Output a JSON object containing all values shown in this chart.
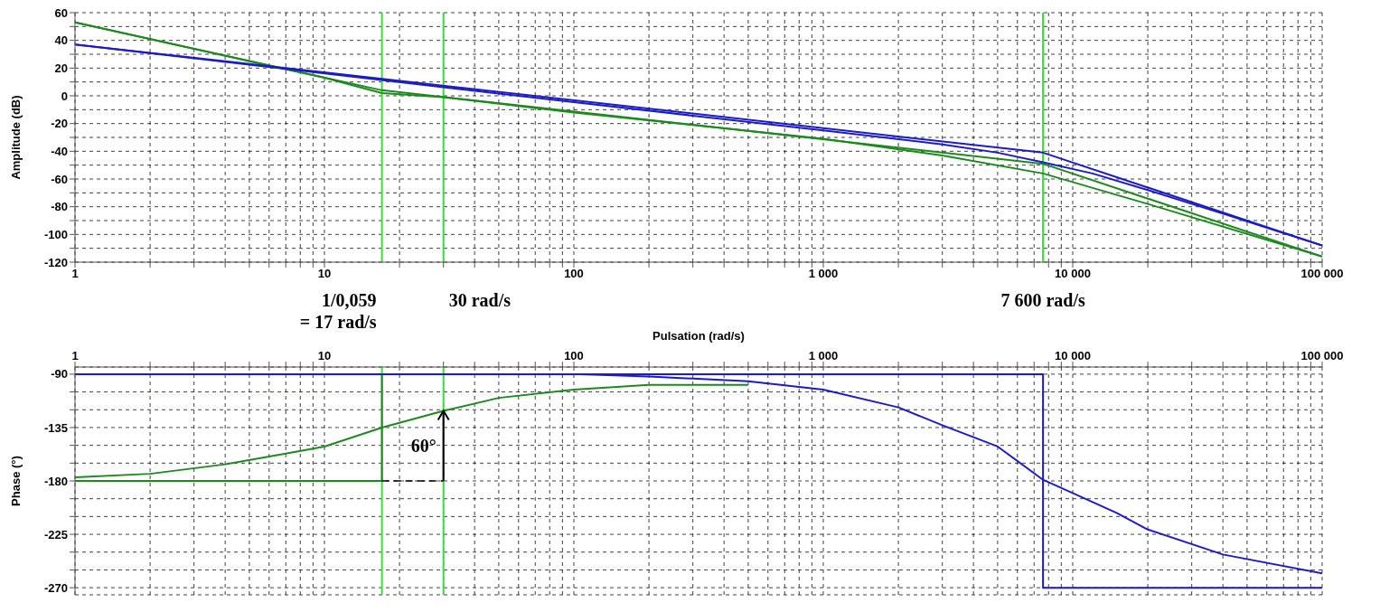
{
  "chart_data": [
    {
      "type": "line",
      "ylabel": "Amplitude (dB)",
      "log": "x",
      "grid": true,
      "xlim": [
        1,
        100000
      ],
      "ylim": [
        -120,
        60
      ],
      "xticks": [
        1,
        {
          "value": 2,
          "label": null
        },
        {
          "value": 3,
          "label": null
        },
        {
          "value": 4,
          "label": null
        },
        {
          "value": 5,
          "label": null
        },
        {
          "value": 6,
          "label": null
        },
        {
          "value": 7,
          "label": null
        },
        {
          "value": 8,
          "label": null
        },
        {
          "value": 9,
          "label": null
        },
        10,
        {
          "value": 20,
          "label": null
        },
        {
          "value": 30,
          "label": null
        },
        {
          "value": 40,
          "label": null
        },
        {
          "value": 50,
          "label": null
        },
        {
          "value": 60,
          "label": null
        },
        {
          "value": 70,
          "label": null
        },
        {
          "value": 80,
          "label": null
        },
        {
          "value": 90,
          "label": null
        },
        100,
        {
          "value": 200,
          "label": null
        },
        {
          "value": 300,
          "label": null
        },
        {
          "value": 400,
          "label": null
        },
        {
          "value": 500,
          "label": null
        },
        {
          "value": 600,
          "label": null
        },
        {
          "value": 700,
          "label": null
        },
        {
          "value": 800,
          "label": null
        },
        {
          "value": 900,
          "label": null
        },
        {
          "value": 1000,
          "label": "1 000"
        },
        {
          "value": 2000,
          "label": null
        },
        {
          "value": 3000,
          "label": null
        },
        {
          "value": 4000,
          "label": null
        },
        {
          "value": 5000,
          "label": null
        },
        {
          "value": 6000,
          "label": null
        },
        {
          "value": 7000,
          "label": null
        },
        {
          "value": 8000,
          "label": null
        },
        {
          "value": 9000,
          "label": null
        },
        {
          "value": 10000,
          "label": "10 000"
        },
        {
          "value": 20000,
          "label": null
        },
        {
          "value": 30000,
          "label": null
        },
        {
          "value": 40000,
          "label": null
        },
        {
          "value": 50000,
          "label": null
        },
        {
          "value": 60000,
          "label": null
        },
        {
          "value": 70000,
          "label": null
        },
        {
          "value": 80000,
          "label": null
        },
        {
          "value": 90000,
          "label": null
        },
        {
          "value": 100000,
          "label": "100 000"
        }
      ],
      "yticks": [
        60,
        {
          "value": 50,
          "label": null
        },
        40,
        {
          "value": 30,
          "label": null
        },
        20,
        {
          "value": 10,
          "label": null
        },
        0,
        {
          "value": -10,
          "label": null
        },
        -20,
        {
          "value": -30,
          "label": null
        },
        -40,
        {
          "value": -50,
          "label": null
        },
        -60,
        {
          "value": -70,
          "label": null
        },
        -80,
        {
          "value": -90,
          "label": null
        },
        -100,
        {
          "value": -110,
          "label": null
        },
        -120
      ],
      "series": [
        {
          "color": "#1e8a1e",
          "x": [
            1,
            17,
            7600,
            100000
          ],
          "values": [
            53,
            4,
            -49,
            -116
          ]
        },
        {
          "color": "#1e8a1e",
          "x": [
            1,
            5,
            10,
            17,
            30,
            100,
            1000,
            3000,
            7600,
            20000,
            100000
          ],
          "values": [
            53,
            25,
            13,
            2,
            -1,
            -12,
            -31,
            -43,
            -56,
            -78,
            -116
          ]
        },
        {
          "color": "#1c1cc4",
          "x": [
            1,
            60,
            1000,
            3000,
            5000,
            7600,
            12000,
            20000,
            40000,
            100000
          ],
          "values": [
            37,
            0,
            -25,
            -35,
            -41,
            -48,
            -56,
            -68,
            -85,
            -108
          ]
        },
        {
          "color": "#1c1cc4",
          "x": [
            1,
            7600,
            100000
          ],
          "values": [
            37,
            -41,
            -108
          ]
        }
      ],
      "ref_lines": [
        {
          "axis": "x",
          "value": 17,
          "label": "1/0,059\n= 17 rad/s",
          "color": "#33e033"
        },
        {
          "axis": "x",
          "value": 30,
          "label": "30 rad/s",
          "color": "#33e033"
        },
        {
          "axis": "x",
          "value": 7600,
          "label": "7 600 rad/s",
          "color": "#33e033"
        }
      ]
    },
    {
      "type": "line",
      "xlabel": "Pulsation (rad/s)",
      "ylabel": "Phase (°)",
      "log": "x",
      "grid": true,
      "xlim": [
        1,
        100000
      ],
      "ylim": [
        -276,
        -84
      ],
      "xticks": [
        1,
        {
          "value": 2,
          "label": null
        },
        {
          "value": 3,
          "label": null
        },
        {
          "value": 4,
          "label": null
        },
        {
          "value": 5,
          "label": null
        },
        {
          "value": 6,
          "label": null
        },
        {
          "value": 7,
          "label": null
        },
        {
          "value": 8,
          "label": null
        },
        {
          "value": 9,
          "label": null
        },
        10,
        {
          "value": 20,
          "label": null
        },
        {
          "value": 30,
          "label": null
        },
        {
          "value": 40,
          "label": null
        },
        {
          "value": 50,
          "label": null
        },
        {
          "value": 60,
          "label": null
        },
        {
          "value": 70,
          "label": null
        },
        {
          "value": 80,
          "label": null
        },
        {
          "value": 90,
          "label": null
        },
        100,
        {
          "value": 200,
          "label": null
        },
        {
          "value": 300,
          "label": null
        },
        {
          "value": 400,
          "label": null
        },
        {
          "value": 500,
          "label": null
        },
        {
          "value": 600,
          "label": null
        },
        {
          "value": 700,
          "label": null
        },
        {
          "value": 800,
          "label": null
        },
        {
          "value": 900,
          "label": null
        },
        {
          "value": 1000,
          "label": "1 000"
        },
        {
          "value": 2000,
          "label": null
        },
        {
          "value": 3000,
          "label": null
        },
        {
          "value": 4000,
          "label": null
        },
        {
          "value": 5000,
          "label": null
        },
        {
          "value": 6000,
          "label": null
        },
        {
          "value": 7000,
          "label": null
        },
        {
          "value": 8000,
          "label": null
        },
        {
          "value": 9000,
          "label": null
        },
        {
          "value": 10000,
          "label": "10 000"
        },
        {
          "value": 20000,
          "label": null
        },
        {
          "value": 30000,
          "label": null
        },
        {
          "value": 40000,
          "label": null
        },
        {
          "value": 50000,
          "label": null
        },
        {
          "value": 60000,
          "label": null
        },
        {
          "value": 70000,
          "label": null
        },
        {
          "value": 80000,
          "label": null
        },
        {
          "value": 90000,
          "label": null
        },
        {
          "value": 100000,
          "label": "100 000"
        }
      ],
      "yticks": [
        -90,
        {
          "value": -105,
          "label": null
        },
        {
          "value": -120,
          "label": null
        },
        -135,
        {
          "value": -150,
          "label": null
        },
        {
          "value": -165,
          "label": null
        },
        -180,
        {
          "value": -195,
          "label": null
        },
        {
          "value": -210,
          "label": null
        },
        -225,
        {
          "value": -240,
          "label": null
        },
        {
          "value": -255,
          "label": null
        },
        -270
      ],
      "series": [
        {
          "color": "#1e8a1e",
          "x": [
            1,
            17,
            17
          ],
          "values": [
            -180,
            -180,
            -90
          ]
        },
        {
          "color": "#1e8a1e",
          "x": [
            1,
            2,
            4,
            7,
            10,
            17,
            30,
            50,
            100,
            200,
            500
          ],
          "values": [
            -177,
            -174,
            -166,
            -157,
            -151,
            -135,
            -121,
            -110,
            -103,
            -99,
            -99
          ]
        },
        {
          "color": "#1c1cc4",
          "x": [
            1,
            100,
            200,
            500,
            1000,
            2000,
            3000,
            5000,
            7600,
            15000,
            20000,
            40000,
            100000
          ],
          "values": [
            -90,
            -90,
            -92,
            -96,
            -103,
            -118,
            -133,
            -151,
            -179,
            -207,
            -221,
            -242,
            -258
          ]
        },
        {
          "color": "#1c1cc4",
          "x": [
            1,
            7600,
            7600,
            100000
          ],
          "values": [
            -90,
            -90,
            -270,
            -270
          ]
        }
      ],
      "ref_lines": [
        {
          "axis": "x",
          "value": 17,
          "color": "#33e033"
        },
        {
          "axis": "x",
          "value": 30,
          "color": "#33e033"
        }
      ],
      "annotations": [
        {
          "text": "60°",
          "x": 30,
          "y": -150
        }
      ]
    }
  ]
}
